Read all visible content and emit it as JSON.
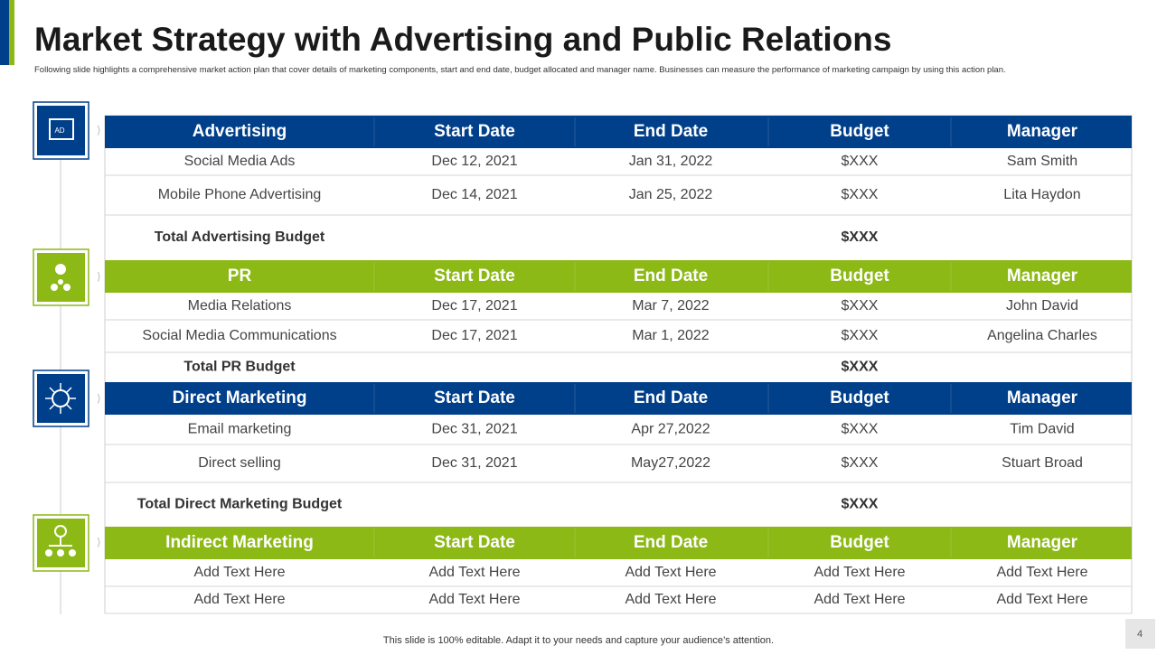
{
  "header": {
    "title": "Market Strategy with Advertising and Public Relations",
    "subtitle": "Following slide highlights a comprehensive market action plan that cover details of marketing components, start and end date, budget allocated and manager name. Businesses can measure the performance of marketing campaign by using this action plan."
  },
  "sections": [
    {
      "header": [
        "Advertising",
        "Start Date",
        "End Date",
        "Budget",
        "Manager"
      ],
      "rows": [
        [
          "Social Media Ads",
          "Dec 12, 2021",
          "Jan 31, 2022",
          "$XXX",
          "Sam Smith"
        ],
        [
          "Mobile Phone Advertising",
          "Dec 14, 2021",
          "Jan 25, 2022",
          "$XXX",
          "Lita Haydon"
        ]
      ],
      "total": {
        "label": "Total Advertising Budget",
        "budget": "$XXX"
      }
    },
    {
      "header": [
        "PR",
        "Start Date",
        "End Date",
        "Budget",
        "Manager"
      ],
      "rows": [
        [
          "Media Relations",
          "Dec 17, 2021",
          "Mar 7, 2022",
          "$XXX",
          "John David"
        ],
        [
          "Social Media Communications",
          "Dec 17, 2021",
          "Mar 1, 2022",
          "$XXX",
          "Angelina Charles"
        ]
      ],
      "total": {
        "label": "Total PR Budget",
        "budget": "$XXX"
      }
    },
    {
      "header": [
        "Direct Marketing",
        "Start Date",
        "End Date",
        "Budget",
        "Manager"
      ],
      "rows": [
        [
          "Email marketing",
          "Dec 31, 2021",
          "Apr 27,2022",
          "$XXX",
          "Tim David"
        ],
        [
          "Direct selling",
          "Dec 31, 2021",
          "May27,2022",
          "$XXX",
          "Stuart Broad"
        ]
      ],
      "total": {
        "label": "Total Direct Marketing Budget",
        "budget": "$XXX"
      }
    },
    {
      "header": [
        "Indirect Marketing",
        "Start Date",
        "End Date",
        "Budget",
        "Manager"
      ],
      "rows": [
        [
          "Add Text Here",
          "Add Text Here",
          "Add Text Here",
          "Add Text Here",
          "Add Text Here"
        ],
        [
          "Add Text Here",
          "Add Text Here",
          "Add Text Here",
          "Add Text Here",
          "Add Text Here"
        ]
      ]
    }
  ],
  "footer": {
    "note": "This slide is 100% editable. Adapt it to your needs and capture your audience’s attention.",
    "page": "4"
  }
}
